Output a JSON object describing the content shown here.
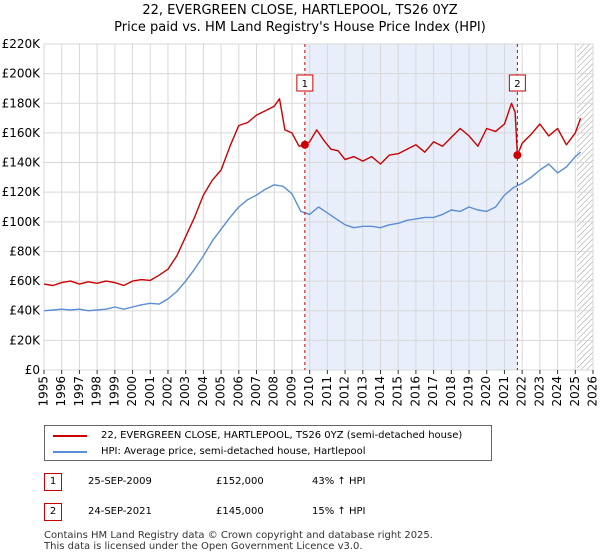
{
  "chart_data": {
    "type": "line",
    "title": "22, EVERGREEN CLOSE, HARTLEPOOL, TS26 0YZ",
    "subtitle": "Price paid vs. HM Land Registry's House Price Index (HPI)",
    "xlabel": "",
    "ylabel": "",
    "xlim": [
      1995,
      2026
    ],
    "ylim": [
      0,
      220000
    ],
    "y_ticks": [
      0,
      20000,
      40000,
      60000,
      80000,
      100000,
      120000,
      140000,
      160000,
      180000,
      200000,
      220000
    ],
    "y_tick_labels": [
      "£0",
      "£20K",
      "£40K",
      "£60K",
      "£80K",
      "£100K",
      "£120K",
      "£140K",
      "£160K",
      "£180K",
      "£200K",
      "£220K"
    ],
    "x_ticks": [
      1995,
      1996,
      1997,
      1998,
      1999,
      2000,
      2001,
      2002,
      2003,
      2004,
      2005,
      2006,
      2007,
      2008,
      2009,
      2010,
      2011,
      2012,
      2013,
      2014,
      2015,
      2016,
      2017,
      2018,
      2019,
      2020,
      2021,
      2022,
      2023,
      2024,
      2025,
      2026
    ],
    "x_tick_labels": [
      "1995",
      "1996",
      "1997",
      "1998",
      "1999",
      "2000",
      "2001",
      "2002",
      "2003",
      "2004",
      "2005",
      "2006",
      "2007",
      "2008",
      "2009",
      "2010",
      "2011",
      "2012",
      "2013",
      "2014",
      "2015",
      "2016",
      "2017",
      "2018",
      "2019",
      "2020",
      "2021",
      "2022",
      "2023",
      "2024",
      "2025",
      "2026"
    ],
    "grid": true,
    "shaded_period": [
      2009.73,
      2021.73
    ],
    "forecast_hatch_from": 2025.1,
    "series": [
      {
        "name": "22, EVERGREEN CLOSE, HARTLEPOOL, TS26 0YZ (semi-detached house)",
        "color": "#cc0000",
        "x": [
          1995.0,
          1995.5,
          1996.0,
          1996.5,
          1997.0,
          1997.5,
          1998.0,
          1998.5,
          1999.0,
          1999.5,
          2000.0,
          2000.5,
          2001.0,
          2001.5,
          2002.0,
          2002.5,
          2003.0,
          2003.5,
          2004.0,
          2004.5,
          2005.0,
          2005.5,
          2006.0,
          2006.5,
          2007.0,
          2007.5,
          2008.0,
          2008.3,
          2008.6,
          2009.0,
          2009.4,
          2009.73,
          2010.0,
          2010.4,
          2010.8,
          2011.2,
          2011.6,
          2012.0,
          2012.5,
          2013.0,
          2013.5,
          2014.0,
          2014.5,
          2015.0,
          2015.5,
          2016.0,
          2016.5,
          2017.0,
          2017.5,
          2018.0,
          2018.5,
          2019.0,
          2019.5,
          2020.0,
          2020.5,
          2021.0,
          2021.4,
          2021.6,
          2021.73,
          2022.0,
          2022.5,
          2023.0,
          2023.5,
          2024.0,
          2024.5,
          2025.0,
          2025.3
        ],
        "y": [
          58000,
          57000,
          59000,
          60000,
          58000,
          59500,
          58500,
          60000,
          59000,
          57000,
          60000,
          61000,
          60500,
          64000,
          68000,
          77000,
          90000,
          103000,
          118000,
          128000,
          135000,
          151000,
          165000,
          167000,
          172000,
          175000,
          178000,
          183000,
          162000,
          160000,
          151000,
          152000,
          154000,
          162000,
          155000,
          149000,
          148000,
          142000,
          144000,
          141000,
          144000,
          139000,
          145000,
          146000,
          149000,
          152000,
          147000,
          154000,
          151000,
          157000,
          163000,
          158000,
          151000,
          163000,
          161000,
          166000,
          180000,
          174000,
          145000,
          153000,
          159000,
          166000,
          158000,
          163000,
          152000,
          160000,
          170000
        ]
      },
      {
        "name": "HPI: Average price, semi-detached house, Hartlepool",
        "color": "#5b8ed6",
        "x": [
          1995.0,
          1995.5,
          1996.0,
          1996.5,
          1997.0,
          1997.5,
          1998.0,
          1998.5,
          1999.0,
          1999.5,
          2000.0,
          2000.5,
          2001.0,
          2001.5,
          2002.0,
          2002.5,
          2003.0,
          2003.5,
          2004.0,
          2004.5,
          2005.0,
          2005.5,
          2006.0,
          2006.5,
          2007.0,
          2007.5,
          2008.0,
          2008.5,
          2009.0,
          2009.5,
          2010.0,
          2010.5,
          2011.0,
          2011.5,
          2012.0,
          2012.5,
          2013.0,
          2013.5,
          2014.0,
          2014.5,
          2015.0,
          2015.5,
          2016.0,
          2016.5,
          2017.0,
          2017.5,
          2018.0,
          2018.5,
          2019.0,
          2019.5,
          2020.0,
          2020.5,
          2021.0,
          2021.5,
          2022.0,
          2022.5,
          2023.0,
          2023.5,
          2024.0,
          2024.5,
          2025.0,
          2025.3
        ],
        "y": [
          40000,
          40500,
          41000,
          40500,
          41000,
          40000,
          40500,
          41000,
          42500,
          41000,
          42500,
          44000,
          45000,
          44500,
          48000,
          53000,
          60000,
          68000,
          77000,
          87000,
          95000,
          103000,
          110000,
          115000,
          118000,
          122000,
          125000,
          124000,
          119000,
          107000,
          105000,
          110000,
          106000,
          102000,
          98000,
          96000,
          97000,
          97000,
          96000,
          98000,
          99000,
          101000,
          102000,
          103000,
          103000,
          105000,
          108000,
          107000,
          110000,
          108000,
          107000,
          110000,
          118000,
          123000,
          126000,
          130000,
          135000,
          139000,
          133000,
          137000,
          144000,
          147000
        ]
      }
    ],
    "annotations": [
      {
        "label": "1",
        "x": 2009.73,
        "y": 152000
      },
      {
        "label": "2",
        "x": 2021.73,
        "y": 145000
      }
    ]
  },
  "legend": {
    "items": [
      {
        "label": "22, EVERGREEN CLOSE, HARTLEPOOL, TS26 0YZ (semi-detached house)",
        "color": "#cc0000"
      },
      {
        "label": "HPI: Average price, semi-detached house, Hartlepool",
        "color": "#5b8ed6"
      }
    ]
  },
  "transactions": [
    {
      "num": "1",
      "date": "25-SEP-2009",
      "price": "£152,000",
      "hpi": "43% ↑ HPI"
    },
    {
      "num": "2",
      "date": "24-SEP-2021",
      "price": "£145,000",
      "hpi": "15% ↑ HPI"
    }
  ],
  "footer": {
    "line1": "Contains HM Land Registry data © Crown copyright and database right 2025.",
    "line2": "This data is licensed under the Open Government Licence v3.0."
  },
  "colors": {
    "property": "#cc0000",
    "hpi": "#5b8ed6",
    "shade": "#e8eefa",
    "grid": "#d8d8d8",
    "marker": "#cc0000"
  }
}
